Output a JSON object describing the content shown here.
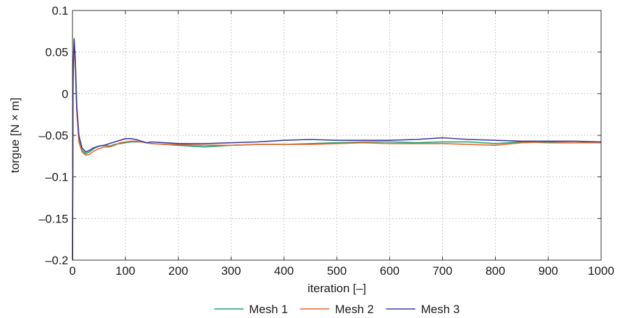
{
  "chart_data": {
    "type": "line",
    "title": "",
    "xlabel": "iteration [–]",
    "ylabel": "torgue [N × m]",
    "xlim": [
      0,
      1000
    ],
    "ylim": [
      -0.2,
      0.1
    ],
    "grid": true,
    "legend_position": "bottom",
    "x_ticks": [
      0,
      100,
      200,
      300,
      400,
      500,
      600,
      700,
      800,
      900,
      1000
    ],
    "x_tick_labels": [
      "0",
      "100",
      "200",
      "300",
      "400",
      "500",
      "600",
      "700",
      "800",
      "900",
      "1000"
    ],
    "y_ticks": [
      -0.2,
      -0.15,
      -0.1,
      -0.05,
      0,
      0.05,
      0.1
    ],
    "y_tick_labels": [
      "–0.2",
      "–0.15",
      "–0.1",
      "–0.05",
      "0",
      "0.05",
      "0.1"
    ],
    "series": [
      {
        "name": "Mesh 1",
        "color": "#1a9e6e",
        "x": [
          0,
          1,
          3,
          5,
          8,
          12,
          18,
          25,
          32,
          40,
          50,
          60,
          70,
          80,
          90,
          100,
          110,
          120,
          130,
          140,
          150,
          175,
          200,
          250,
          300,
          350,
          400,
          450,
          500,
          550,
          600,
          650,
          700,
          750,
          800,
          850,
          900,
          950,
          1000
        ],
        "y": [
          -0.2,
          0.02,
          0.063,
          0.04,
          -0.02,
          -0.055,
          -0.068,
          -0.072,
          -0.07,
          -0.066,
          -0.063,
          -0.062,
          -0.063,
          -0.061,
          -0.06,
          -0.059,
          -0.058,
          -0.058,
          -0.058,
          -0.059,
          -0.06,
          -0.061,
          -0.062,
          -0.064,
          -0.062,
          -0.061,
          -0.061,
          -0.06,
          -0.059,
          -0.058,
          -0.058,
          -0.059,
          -0.058,
          -0.058,
          -0.06,
          -0.058,
          -0.059,
          -0.059,
          -0.058
        ]
      },
      {
        "name": "Mesh 2",
        "color": "#e8672a",
        "x": [
          0,
          1,
          3,
          5,
          8,
          12,
          18,
          25,
          32,
          40,
          50,
          60,
          70,
          80,
          90,
          100,
          110,
          120,
          130,
          140,
          150,
          175,
          200,
          250,
          300,
          350,
          400,
          450,
          500,
          550,
          600,
          650,
          700,
          750,
          800,
          850,
          900,
          950,
          1000
        ],
        "y": [
          -0.2,
          0.015,
          0.06,
          0.038,
          -0.022,
          -0.058,
          -0.07,
          -0.074,
          -0.073,
          -0.069,
          -0.066,
          -0.064,
          -0.064,
          -0.062,
          -0.059,
          -0.058,
          -0.057,
          -0.057,
          -0.058,
          -0.059,
          -0.06,
          -0.061,
          -0.061,
          -0.062,
          -0.062,
          -0.061,
          -0.061,
          -0.061,
          -0.06,
          -0.059,
          -0.06,
          -0.06,
          -0.06,
          -0.061,
          -0.062,
          -0.059,
          -0.058,
          -0.059,
          -0.059
        ]
      },
      {
        "name": "Mesh 3",
        "color": "#3b3b9e",
        "x": [
          0,
          1,
          3,
          5,
          8,
          12,
          18,
          25,
          32,
          40,
          50,
          60,
          70,
          80,
          90,
          100,
          110,
          120,
          130,
          140,
          150,
          175,
          200,
          250,
          300,
          350,
          400,
          450,
          500,
          550,
          600,
          650,
          700,
          750,
          800,
          850,
          900,
          950,
          1000
        ],
        "y": [
          -0.2,
          0.025,
          0.066,
          0.045,
          -0.015,
          -0.05,
          -0.065,
          -0.07,
          -0.068,
          -0.065,
          -0.063,
          -0.062,
          -0.06,
          -0.058,
          -0.056,
          -0.054,
          -0.054,
          -0.055,
          -0.057,
          -0.059,
          -0.058,
          -0.059,
          -0.06,
          -0.06,
          -0.059,
          -0.058,
          -0.056,
          -0.055,
          -0.056,
          -0.056,
          -0.056,
          -0.055,
          -0.053,
          -0.055,
          -0.056,
          -0.057,
          -0.057,
          -0.057,
          -0.058
        ]
      }
    ]
  }
}
